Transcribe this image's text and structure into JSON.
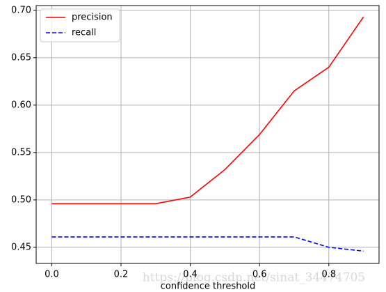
{
  "chart_data": {
    "type": "line",
    "x_label": "confidence threshold",
    "watermark": "https://blog.csdn.net/sinat_34474705",
    "x": [
      0,
      0.1,
      0.2,
      0.3,
      0.4,
      0.5,
      0.6,
      0.7,
      0.8,
      0.9
    ],
    "series": [
      {
        "name": "precision",
        "color": "#ff0000",
        "dash": "solid",
        "values": [
          0.496,
          0.496,
          0.496,
          0.496,
          0.503,
          0.532,
          0.569,
          0.615,
          0.64,
          0.693
        ]
      },
      {
        "name": "recall",
        "color": "#0000ff",
        "dash": "dashed",
        "values": [
          0.461,
          0.461,
          0.461,
          0.461,
          0.461,
          0.461,
          0.461,
          0.461,
          0.45,
          0.446
        ]
      }
    ],
    "xlim": [
      -0.045,
      0.945
    ],
    "ylim": [
      0.433,
      0.705
    ],
    "xticks": [
      {
        "value": 0,
        "label": "0.0"
      },
      0.2,
      0.4,
      0.6,
      0.8
    ],
    "yticks": [
      0.45,
      {
        "value": 0.5,
        "label": "0.50"
      },
      0.55,
      {
        "value": 0.6,
        "label": "0.60"
      },
      0.65,
      {
        "value": 0.7,
        "label": "0.70"
      }
    ],
    "grid": true,
    "legend": "upper-left"
  }
}
